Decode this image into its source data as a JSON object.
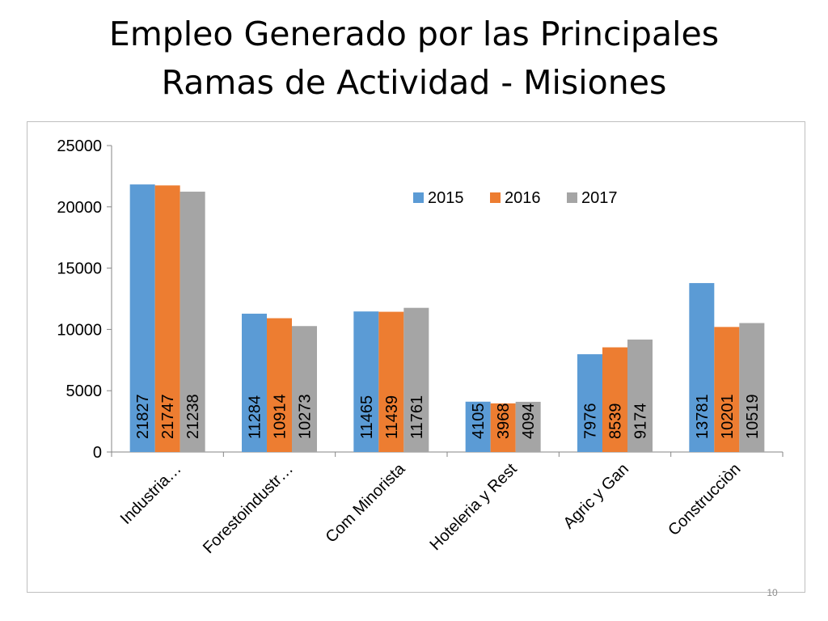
{
  "slide": {
    "title_line1": "Empleo Generado por las Principales",
    "title_line2": "Ramas de Actividad - Misiones",
    "page_number": "10"
  },
  "chart_data": {
    "type": "bar",
    "title": "",
    "xlabel": "",
    "ylabel": "",
    "ylim": [
      0,
      25000
    ],
    "yticks": [
      0,
      5000,
      10000,
      15000,
      20000,
      25000
    ],
    "grid": false,
    "legend_position": "top-right",
    "data_labels": "vertical-inside-base",
    "categories": [
      "Industria…",
      "Forestoindustr…",
      "Com Minorista",
      "Hoteleria y Rest",
      "Agric y Gan",
      "Construcciòn"
    ],
    "series": [
      {
        "name": "2015",
        "color": "#5b9bd5",
        "values": [
          21827,
          11284,
          11465,
          4105,
          7976,
          13781
        ]
      },
      {
        "name": "2016",
        "color": "#ed7d31",
        "values": [
          21747,
          10914,
          11439,
          3968,
          8539,
          10201
        ]
      },
      {
        "name": "2017",
        "color": "#a5a5a5",
        "values": [
          21238,
          10273,
          11761,
          4094,
          9174,
          10519
        ]
      }
    ]
  }
}
